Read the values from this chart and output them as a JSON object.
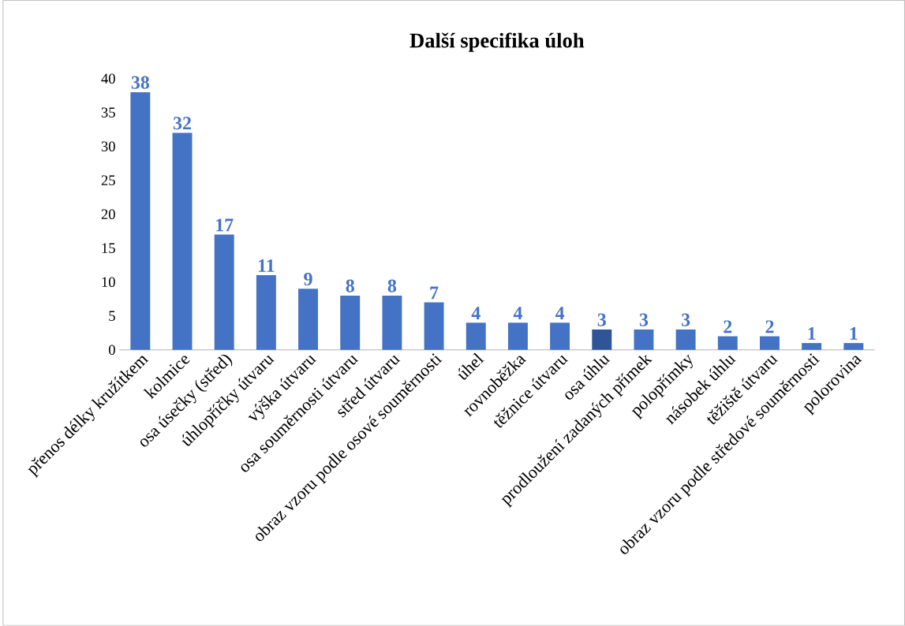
{
  "chart_data": {
    "type": "bar",
    "title": "Další specifika úloh",
    "categories": [
      "přenos délky kružítkem",
      "kolmice",
      "osa úsečky (střed)",
      "úhlopříčky útvaru",
      "výška útvaru",
      "osa souměrnosti útvaru",
      "střed útvaru",
      "obraz vzoru podle osové souměrnosti",
      "úhel",
      "rovnoběžka",
      "těžnice útvaru",
      "osa úhlu",
      "prodloužení zadaných přímek",
      "polopřímky",
      "násobek úhlu",
      "těžiště útvaru",
      "obraz vzoru podle středové souměrnosti",
      "polorovina"
    ],
    "values": [
      38,
      32,
      17,
      11,
      9,
      8,
      8,
      7,
      4,
      4,
      4,
      3,
      3,
      3,
      2,
      2,
      1,
      1
    ],
    "colors": [
      "#4472c4",
      "#4472c4",
      "#4472c4",
      "#4472c4",
      "#4472c4",
      "#4472c4",
      "#4472c4",
      "#4472c4",
      "#4472c4",
      "#4472c4",
      "#4472c4",
      "#2f5597",
      "#4472c4",
      "#4472c4",
      "#4472c4",
      "#4472c4",
      "#4472c4",
      "#4472c4"
    ],
    "ylim": [
      0,
      40
    ],
    "yticks": [
      0,
      5,
      10,
      15,
      20,
      25,
      30,
      35,
      40
    ],
    "data_labels": true,
    "grid": false
  }
}
